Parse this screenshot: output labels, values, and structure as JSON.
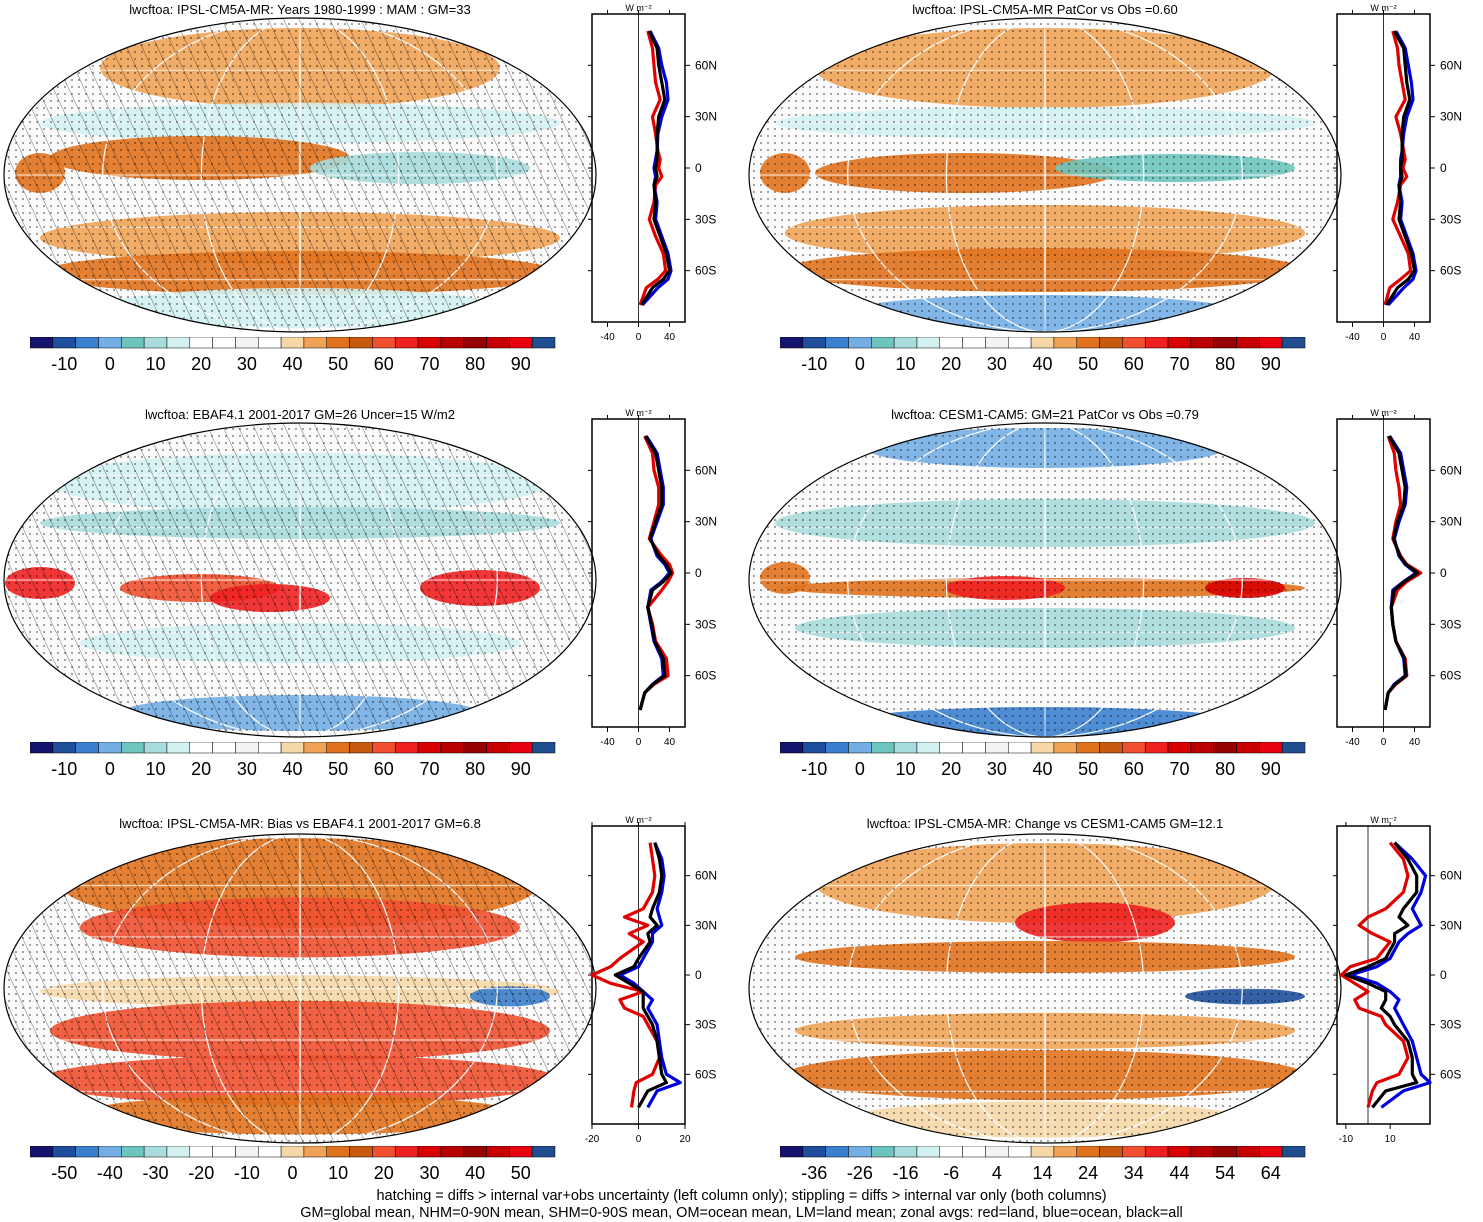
{
  "panels": [
    {
      "id": "p1",
      "title": "lwcftoa: IPSL-CM5A-MR: Years 1980-1999 : MAM : GM=33",
      "hatch": true,
      "colorbar": [
        "-10",
        "0",
        "10",
        "20",
        "30",
        "40",
        "50",
        "60",
        "70",
        "80",
        "90"
      ],
      "zonal": {
        "xticks": [
          "-40",
          "0",
          "40"
        ],
        "xlim": [
          -60,
          60
        ],
        "unit": "W m⁻²",
        "series": [
          {
            "color": "#e00000",
            "lat": [
              80,
              70,
              60,
              50,
              40,
              30,
              20,
              10,
              5,
              0,
              -5,
              -10,
              -20,
              -30,
              -40,
              -50,
              -60,
              -65,
              -70,
              -80
            ],
            "val": [
              12,
              18,
              20,
              22,
              28,
              18,
              22,
              25,
              28,
              26,
              30,
              22,
              20,
              14,
              22,
              32,
              35,
              25,
              10,
              2
            ]
          },
          {
            "color": "#0000dd",
            "lat": [
              80,
              70,
              60,
              50,
              40,
              30,
              20,
              10,
              5,
              0,
              -5,
              -10,
              -20,
              -30,
              -40,
              -50,
              -60,
              -65,
              -70,
              -80
            ],
            "val": [
              15,
              26,
              30,
              36,
              38,
              30,
              25,
              24,
              22,
              20,
              22,
              20,
              24,
              22,
              30,
              38,
              42,
              38,
              25,
              5
            ]
          },
          {
            "color": "#000000",
            "lat": [
              80,
              70,
              60,
              50,
              40,
              30,
              20,
              10,
              5,
              0,
              -5,
              -10,
              -20,
              -30,
              -40,
              -50,
              -60,
              -65,
              -70,
              -80
            ],
            "val": [
              14,
              24,
              26,
              30,
              34,
              26,
              24,
              24,
              24,
              22,
              24,
              20,
              22,
              20,
              28,
              36,
              40,
              32,
              18,
              4
            ]
          }
        ]
      }
    },
    {
      "id": "p2",
      "title": "lwcftoa: IPSL-CM5A-MR PatCor vs Obs =0.60",
      "hatch": false,
      "colorbar": [
        "-10",
        "0",
        "10",
        "20",
        "30",
        "40",
        "50",
        "60",
        "70",
        "80",
        "90"
      ],
      "zonal": {
        "xticks": [
          "-40",
          "0",
          "40"
        ],
        "xlim": [
          -60,
          60
        ],
        "unit": "W m⁻²",
        "series": [
          {
            "color": "#e00000",
            "lat": [
              80,
              70,
              60,
              50,
              40,
              30,
              20,
              10,
              5,
              0,
              -5,
              -10,
              -20,
              -30,
              -40,
              -50,
              -60,
              -65,
              -70,
              -80
            ],
            "val": [
              12,
              18,
              20,
              24,
              28,
              16,
              22,
              26,
              28,
              25,
              30,
              22,
              18,
              12,
              22,
              32,
              35,
              22,
              8,
              2
            ]
          },
          {
            "color": "#0000dd",
            "lat": [
              80,
              70,
              60,
              50,
              40,
              30,
              20,
              10,
              5,
              0,
              -5,
              -10,
              -20,
              -30,
              -40,
              -50,
              -60,
              -65,
              -70,
              -80
            ],
            "val": [
              16,
              28,
              32,
              36,
              38,
              30,
              26,
              24,
              22,
              22,
              22,
              20,
              24,
              22,
              30,
              38,
              42,
              38,
              26,
              6
            ]
          },
          {
            "color": "#000000",
            "lat": [
              80,
              70,
              60,
              50,
              40,
              30,
              20,
              10,
              5,
              0,
              -5,
              -10,
              -20,
              -30,
              -40,
              -50,
              -60,
              -65,
              -70,
              -80
            ],
            "val": [
              14,
              26,
              28,
              30,
              34,
              26,
              24,
              24,
              24,
              22,
              24,
              20,
              22,
              20,
              28,
              36,
              40,
              32,
              18,
              4
            ]
          }
        ]
      }
    },
    {
      "id": "p3",
      "title": "lwcftoa: EBAF4.1 2001-2017 GM=26 Uncer=15 W/m2",
      "hatch": true,
      "colorbar": [
        "-10",
        "0",
        "10",
        "20",
        "30",
        "40",
        "50",
        "60",
        "70",
        "80",
        "90"
      ],
      "zonal": {
        "xticks": [
          "-40",
          "0",
          "40"
        ],
        "xlim": [
          -60,
          60
        ],
        "unit": "W m⁻²",
        "series": [
          {
            "color": "#e00000",
            "lat": [
              80,
              70,
              60,
              50,
              40,
              30,
              20,
              10,
              5,
              0,
              -5,
              -10,
              -20,
              -30,
              -40,
              -50,
              -60,
              -65,
              -70,
              -80
            ],
            "val": [
              8,
              18,
              20,
              26,
              26,
              20,
              14,
              30,
              40,
              44,
              38,
              30,
              12,
              18,
              22,
              36,
              38,
              20,
              8,
              2
            ]
          },
          {
            "color": "#0000dd",
            "lat": [
              80,
              70,
              60,
              50,
              40,
              30,
              20,
              10,
              5,
              0,
              -5,
              -10,
              -20,
              -30,
              -40,
              -50,
              -60,
              -65,
              -70,
              -80
            ],
            "val": [
              10,
              24,
              28,
              32,
              32,
              24,
              16,
              24,
              34,
              40,
              30,
              16,
              12,
              16,
              20,
              30,
              32,
              18,
              8,
              2
            ]
          },
          {
            "color": "#000000",
            "lat": [
              80,
              70,
              60,
              50,
              40,
              30,
              20,
              10,
              5,
              0,
              -5,
              -10,
              -20,
              -30,
              -40,
              -50,
              -60,
              -65,
              -70,
              -80
            ],
            "val": [
              9,
              22,
              26,
              30,
              30,
              22,
              15,
              26,
              36,
              42,
              32,
              18,
              12,
              17,
              21,
              32,
              34,
              19,
              8,
              2
            ]
          }
        ]
      }
    },
    {
      "id": "p4",
      "title": "lwcftoa: CESM1-CAM5: GM=21 PatCor vs Obs =0.79",
      "hatch": false,
      "colorbar": [
        "-10",
        "0",
        "10",
        "20",
        "30",
        "40",
        "50",
        "60",
        "70",
        "80",
        "90"
      ],
      "zonal": {
        "xticks": [
          "-40",
          "0",
          "40"
        ],
        "xlim": [
          -60,
          60
        ],
        "unit": "W m⁻²",
        "series": [
          {
            "color": "#e00000",
            "lat": [
              80,
              70,
              60,
              50,
              40,
              30,
              20,
              10,
              5,
              0,
              -5,
              -10,
              -20,
              -30,
              -40,
              -50,
              -60,
              -65,
              -70,
              -80
            ],
            "val": [
              6,
              14,
              16,
              20,
              22,
              16,
              12,
              22,
              30,
              48,
              30,
              18,
              10,
              12,
              16,
              28,
              30,
              16,
              6,
              2
            ]
          },
          {
            "color": "#0000dd",
            "lat": [
              80,
              70,
              60,
              50,
              40,
              30,
              20,
              10,
              5,
              0,
              -5,
              -10,
              -20,
              -30,
              -40,
              -50,
              -60,
              -65,
              -70,
              -80
            ],
            "val": [
              8,
              22,
              26,
              30,
              28,
              20,
              14,
              20,
              28,
              42,
              26,
              12,
              10,
              12,
              16,
              26,
              28,
              14,
              6,
              2
            ]
          },
          {
            "color": "#000000",
            "lat": [
              80,
              70,
              60,
              50,
              40,
              30,
              20,
              10,
              5,
              0,
              -5,
              -10,
              -20,
              -30,
              -40,
              -50,
              -60,
              -65,
              -70,
              -80
            ],
            "val": [
              7,
              20,
              24,
              28,
              26,
              18,
              13,
              21,
              29,
              44,
              27,
              14,
              10,
              12,
              16,
              27,
              29,
              15,
              6,
              2
            ]
          }
        ]
      }
    },
    {
      "id": "p5",
      "title": "lwcftoa: IPSL-CM5A-MR: Bias vs EBAF4.1 2001-2017 GM=6.8",
      "hatch": true,
      "colorbar": [
        "-50",
        "-40",
        "-30",
        "-20",
        "-10",
        "0",
        "10",
        "20",
        "30",
        "40",
        "50"
      ],
      "zonal": {
        "xticks": [
          "-20",
          "0",
          "20"
        ],
        "xlim": [
          -20,
          20
        ],
        "unit": "W m⁻²",
        "series": [
          {
            "color": "#e00000",
            "lat": [
              80,
              70,
              60,
              50,
              40,
              35,
              30,
              25,
              20,
              10,
              5,
              0,
              -5,
              -10,
              -15,
              -20,
              -25,
              -30,
              -40,
              -50,
              -60,
              -65,
              -70,
              -80
            ],
            "val": [
              5,
              6,
              7,
              6,
              2,
              -6,
              4,
              -4,
              2,
              -8,
              -12,
              -20,
              -12,
              2,
              -8,
              -6,
              2,
              4,
              8,
              9,
              6,
              -1,
              -2,
              -3
            ]
          },
          {
            "color": "#0000dd",
            "lat": [
              80,
              70,
              60,
              50,
              40,
              35,
              30,
              25,
              20,
              10,
              5,
              0,
              -5,
              -10,
              -15,
              -20,
              -25,
              -30,
              -40,
              -50,
              -60,
              -65,
              -70,
              -80
            ],
            "val": [
              7,
              10,
              11,
              10,
              8,
              9,
              10,
              6,
              6,
              2,
              0,
              -8,
              -2,
              2,
              6,
              4,
              6,
              8,
              9,
              10,
              12,
              18,
              8,
              4
            ]
          },
          {
            "color": "#000000",
            "lat": [
              80,
              70,
              60,
              50,
              40,
              35,
              30,
              25,
              20,
              10,
              5,
              0,
              -5,
              -10,
              -15,
              -20,
              -25,
              -30,
              -40,
              -50,
              -60,
              -65,
              -70,
              -80
            ],
            "val": [
              7,
              9,
              10,
              9,
              6,
              5,
              8,
              4,
              5,
              0,
              -2,
              -10,
              -4,
              2,
              2,
              2,
              4,
              6,
              8,
              9,
              10,
              12,
              4,
              0
            ]
          }
        ]
      }
    },
    {
      "id": "p6",
      "title": "lwcftoa: IPSL-CM5A-MR: Change vs CESM1-CAM5 GM=12.1",
      "hatch": false,
      "colorbar": [
        "-36",
        "-26",
        "-16",
        "-6",
        "4",
        "14",
        "24",
        "34",
        "44",
        "54",
        "64"
      ],
      "zonal": {
        "xticks": [
          "-10",
          "10"
        ],
        "xlim": [
          -14,
          28
        ],
        "unit": "W m⁻²",
        "series": [
          {
            "color": "#e00000",
            "lat": [
              80,
              70,
              60,
              50,
              40,
              35,
              30,
              25,
              20,
              10,
              5,
              0,
              -5,
              -10,
              -15,
              -20,
              -25,
              -30,
              -40,
              -50,
              -60,
              -65,
              -70,
              -80
            ],
            "val": [
              10,
              16,
              18,
              16,
              8,
              0,
              -4,
              2,
              10,
              4,
              -8,
              -12,
              -6,
              0,
              -6,
              -4,
              6,
              8,
              16,
              18,
              14,
              4,
              2,
              0
            ]
          },
          {
            "color": "#0000dd",
            "lat": [
              80,
              70,
              60,
              50,
              40,
              35,
              30,
              25,
              20,
              10,
              5,
              0,
              -5,
              -10,
              -15,
              -20,
              -25,
              -30,
              -40,
              -50,
              -60,
              -65,
              -70,
              -80
            ],
            "val": [
              12,
              20,
              26,
              24,
              20,
              22,
              24,
              18,
              14,
              10,
              4,
              -8,
              4,
              10,
              14,
              12,
              14,
              16,
              20,
              22,
              24,
              28,
              16,
              6
            ]
          },
          {
            "color": "#000000",
            "lat": [
              80,
              70,
              60,
              50,
              40,
              35,
              30,
              25,
              20,
              10,
              5,
              0,
              -5,
              -10,
              -15,
              -20,
              -25,
              -30,
              -40,
              -50,
              -60,
              -65,
              -70,
              -80
            ],
            "val": [
              12,
              18,
              22,
              22,
              16,
              14,
              18,
              12,
              12,
              8,
              0,
              -10,
              0,
              8,
              8,
              6,
              10,
              12,
              18,
              20,
              20,
              22,
              8,
              2
            ]
          }
        ]
      }
    }
  ],
  "colorbar_colors": [
    "#14146e",
    "#1f4f9c",
    "#3b7fcf",
    "#74aee4",
    "#6ec4be",
    "#a9dcdc",
    "#d3f1f1",
    "#ffffff",
    "#ffffff",
    "#f3f3f3",
    "#ffffff",
    "#f6d7a8",
    "#f0a356",
    "#e0721e",
    "#c85a10",
    "#f05030",
    "#ee2020",
    "#d80000",
    "#b80000",
    "#950000",
    "#c60000",
    "#e60010",
    "#204d8f"
  ],
  "lat_labels": [
    "60N",
    "30N",
    "0",
    "30S",
    "60S"
  ],
  "footnote": {
    "line1": "hatching = diffs > internal var+obs uncertainty (left column only); stippling = diffs > internal var only (both columns)",
    "line2": "GM=global mean, NHM=0-90N mean, SHM=0-90S mean, OM=ocean mean, LM=land mean; zonal avgs: red=land, blue=ocean, black=all"
  }
}
